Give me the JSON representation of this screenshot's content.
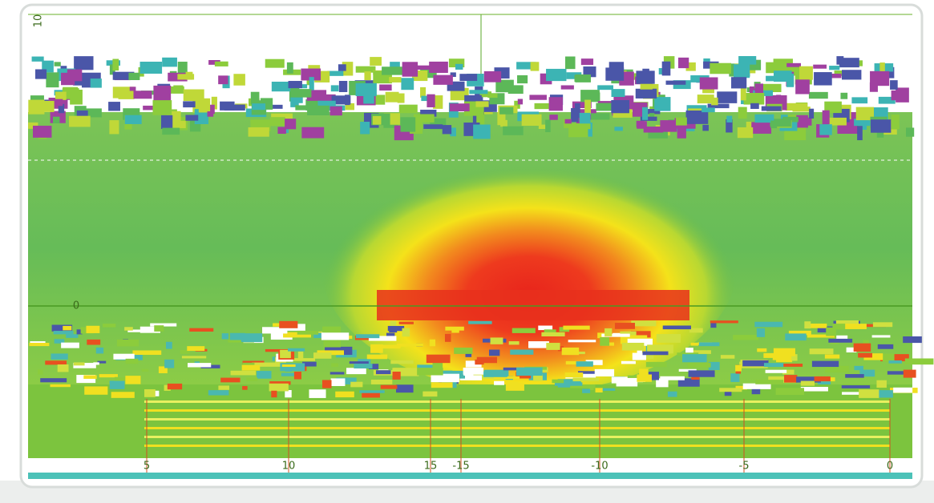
{
  "axis_labels": {
    "left": [
      "10",
      "0"
    ],
    "bottom": [
      "5",
      "10",
      "15",
      "-15",
      "-10",
      "-5",
      "0"
    ]
  }
}
